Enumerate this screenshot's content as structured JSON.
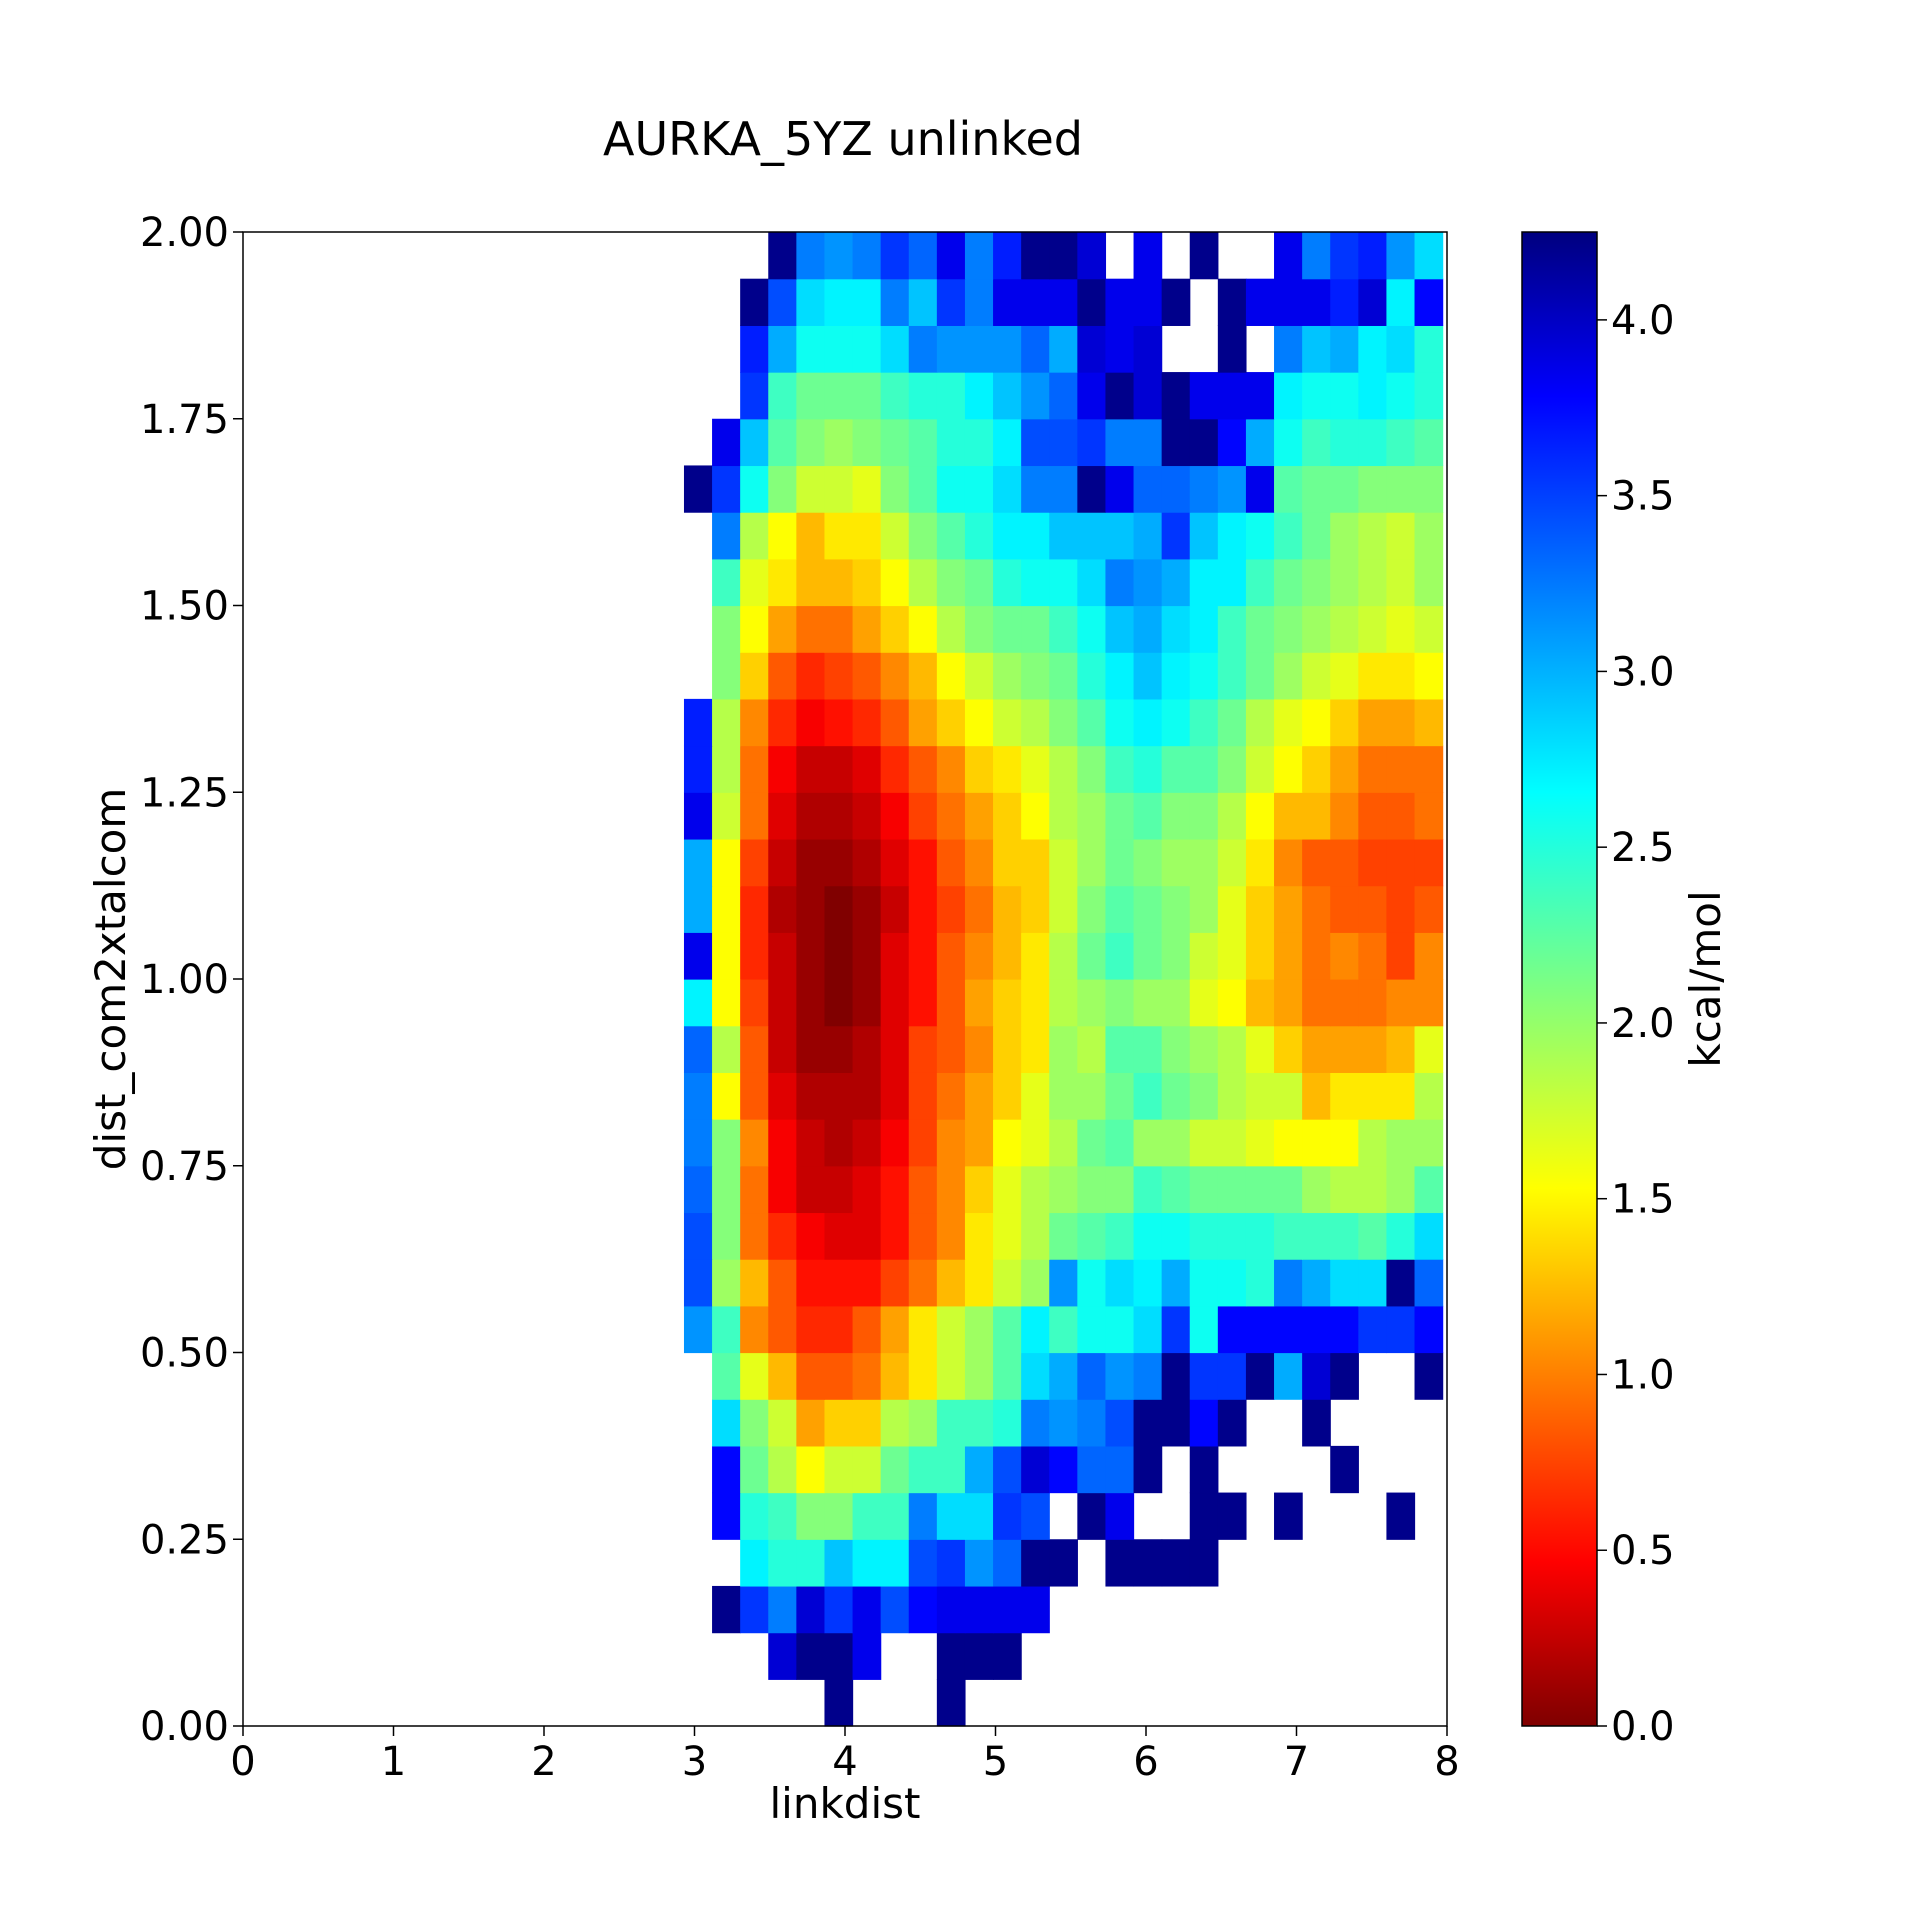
{
  "chart_data": {
    "type": "heatmap",
    "title": "AURKA_5YZ unlinked",
    "xlabel": "linkdist",
    "ylabel": "dist_com2xtalcom",
    "colorbar_label": "kcal/mol",
    "colormap": "jet",
    "xlim": [
      0,
      8
    ],
    "ylim": [
      0,
      2
    ],
    "clim": [
      0,
      4.25
    ],
    "x_ticks": [
      0,
      1,
      2,
      3,
      4,
      5,
      6,
      7,
      8
    ],
    "x_tick_labels": [
      "0",
      "1",
      "2",
      "3",
      "4",
      "5",
      "6",
      "7",
      "8"
    ],
    "y_ticks": [
      0,
      0.25,
      0.5,
      0.75,
      1.0,
      1.25,
      1.5,
      1.75,
      2.0
    ],
    "y_tick_labels": [
      "0.00",
      "0.25",
      "0.50",
      "0.75",
      "1.00",
      "1.25",
      "1.50",
      "1.75",
      "2.00"
    ],
    "colorbar_ticks": [
      0,
      0.5,
      1.0,
      1.5,
      2.0,
      2.5,
      3.0,
      3.5,
      4.0
    ],
    "colorbar_tick_labels": [
      "0.0",
      "0.5",
      "1.0",
      "1.5",
      "2.0",
      "2.5",
      "3.0",
      "3.5",
      "4.0"
    ],
    "x_bin_edges_start": 2.93,
    "x_bin_width": 0.1867,
    "y_bin_height": 0.0625,
    "y_bin_order": "bottom row first (row 0 = y 0.000–0.0625)",
    "grid": false,
    "values": [
      [
        null,
        null,
        null,
        null,
        null,
        4.2,
        null,
        null,
        null,
        4.2,
        null,
        null,
        null,
        null,
        null,
        null,
        null,
        null,
        null,
        null,
        null,
        null,
        null,
        null,
        null,
        null,
        null
      ],
      [
        null,
        null,
        null,
        3.9,
        4.2,
        4.2,
        3.8,
        null,
        null,
        4.2,
        4.2,
        4.2,
        null,
        null,
        null,
        null,
        null,
        null,
        null,
        null,
        null,
        null,
        null,
        null,
        null,
        null,
        null
      ],
      [
        null,
        4.2,
        3.5,
        3.2,
        3.9,
        3.5,
        3.8,
        3.4,
        3.7,
        3.8,
        3.8,
        3.8,
        3.8,
        null,
        null,
        null,
        null,
        null,
        null,
        null,
        null,
        null,
        null,
        null,
        null,
        null,
        null
      ],
      [
        null,
        null,
        2.7,
        2.5,
        2.5,
        2.9,
        2.7,
        2.7,
        3.4,
        3.5,
        3.1,
        3.3,
        4.2,
        4.2,
        null,
        4.2,
        4.2,
        4.2,
        4.2,
        null,
        null,
        null,
        null,
        null,
        null,
        null,
        null
      ],
      [
        null,
        3.7,
        2.5,
        2.4,
        2.1,
        2.1,
        2.4,
        2.4,
        3.2,
        2.8,
        2.8,
        3.5,
        3.4,
        null,
        4.2,
        3.8,
        null,
        null,
        4.2,
        4.2,
        null,
        4.2,
        null,
        null,
        null,
        4.2,
        null
      ],
      [
        null,
        3.7,
        2.2,
        1.9,
        1.6,
        1.8,
        1.8,
        2.2,
        2.4,
        2.4,
        3.0,
        3.4,
        3.9,
        3.7,
        3.3,
        3.3,
        4.2,
        null,
        4.2,
        null,
        null,
        null,
        null,
        4.2,
        null,
        null,
        null
      ],
      [
        null,
        2.8,
        2.1,
        1.8,
        1.2,
        1.4,
        1.4,
        1.9,
        2.0,
        2.4,
        2.4,
        2.5,
        3.2,
        3.1,
        3.2,
        3.4,
        4.2,
        4.2,
        3.7,
        4.2,
        null,
        null,
        4.2,
        null,
        null,
        null,
        null
      ],
      [
        null,
        2.3,
        1.7,
        1.3,
        0.9,
        0.9,
        1.0,
        1.3,
        1.5,
        1.8,
        2.0,
        2.3,
        2.8,
        3.0,
        3.3,
        3.1,
        3.2,
        4.2,
        3.5,
        3.5,
        4.2,
        3.0,
        3.9,
        4.2,
        null,
        null,
        4.2
      ],
      [
        3.1,
        2.4,
        1.1,
        0.9,
        0.7,
        0.7,
        0.9,
        1.2,
        1.5,
        1.8,
        2.0,
        2.3,
        2.7,
        2.4,
        2.6,
        2.6,
        2.8,
        3.5,
        2.6,
        3.7,
        3.7,
        3.7,
        3.7,
        3.7,
        3.5,
        3.5,
        3.7
      ],
      [
        3.4,
        2.0,
        1.3,
        0.9,
        0.6,
        0.6,
        0.6,
        0.8,
        1.0,
        1.3,
        1.5,
        1.8,
        2.0,
        3.1,
        2.6,
        2.8,
        2.7,
        3.0,
        2.6,
        2.6,
        2.5,
        3.2,
        3.0,
        2.8,
        2.8,
        4.2,
        3.3
      ],
      [
        3.4,
        2.1,
        1.0,
        0.7,
        0.5,
        0.4,
        0.4,
        0.6,
        0.9,
        1.1,
        1.5,
        1.7,
        1.9,
        2.2,
        2.3,
        2.4,
        2.6,
        2.6,
        2.5,
        2.5,
        2.5,
        2.4,
        2.4,
        2.4,
        2.3,
        2.5,
        2.8
      ],
      [
        3.3,
        2.1,
        1.0,
        0.5,
        0.3,
        0.3,
        0.4,
        0.6,
        0.9,
        1.1,
        1.4,
        1.7,
        1.9,
        2.0,
        2.1,
        2.1,
        2.4,
        2.3,
        2.2,
        2.2,
        2.2,
        2.2,
        2.0,
        1.9,
        1.9,
        2.0,
        2.3
      ],
      [
        3.2,
        2.1,
        1.1,
        0.5,
        0.3,
        0.2,
        0.3,
        0.5,
        0.8,
        1.1,
        1.2,
        1.6,
        1.7,
        1.9,
        2.2,
        2.3,
        2.0,
        2.0,
        1.8,
        1.8,
        1.7,
        1.6,
        1.6,
        1.6,
        1.9,
        2.0,
        2.0
      ],
      [
        3.2,
        1.6,
        0.9,
        0.4,
        0.2,
        0.2,
        0.2,
        0.4,
        0.8,
        1.0,
        1.2,
        1.4,
        1.7,
        2.0,
        2.0,
        2.2,
        2.4,
        2.2,
        2.1,
        1.9,
        1.8,
        1.8,
        1.3,
        1.5,
        1.5,
        1.5,
        1.9
      ],
      [
        3.3,
        1.9,
        0.9,
        0.3,
        0.1,
        0.1,
        0.2,
        0.4,
        0.8,
        0.9,
        1.1,
        1.4,
        1.5,
        2.0,
        1.9,
        2.3,
        2.3,
        2.1,
        2.0,
        1.9,
        1.7,
        1.4,
        1.2,
        1.2,
        1.2,
        1.3,
        1.7
      ],
      [
        2.7,
        1.6,
        0.8,
        0.3,
        0.1,
        0.0,
        0.1,
        0.4,
        0.6,
        0.9,
        1.2,
        1.4,
        1.5,
        1.9,
        2.0,
        2.1,
        2.0,
        2.0,
        1.7,
        1.6,
        1.3,
        1.2,
        1.0,
        1.0,
        1.0,
        1.1,
        1.1
      ],
      [
        3.8,
        1.6,
        0.7,
        0.3,
        0.1,
        0.0,
        0.1,
        0.4,
        0.6,
        0.9,
        1.1,
        1.3,
        1.5,
        1.9,
        2.2,
        2.4,
        2.2,
        2.1,
        1.8,
        1.7,
        1.4,
        1.2,
        1.0,
        1.1,
        1.0,
        0.8,
        1.1
      ],
      [
        3.0,
        1.6,
        0.7,
        0.2,
        0.1,
        0.0,
        0.1,
        0.3,
        0.6,
        0.8,
        1.0,
        1.3,
        1.4,
        1.8,
        2.1,
        2.3,
        2.2,
        2.1,
        2.0,
        1.7,
        1.4,
        1.2,
        1.0,
        0.9,
        0.9,
        0.8,
        0.9
      ],
      [
        3.0,
        1.6,
        0.8,
        0.3,
        0.1,
        0.1,
        0.2,
        0.4,
        0.6,
        0.9,
        1.1,
        1.4,
        1.4,
        1.8,
        2.0,
        2.2,
        2.1,
        2.0,
        2.0,
        1.8,
        1.5,
        1.1,
        0.9,
        0.9,
        0.8,
        0.8,
        0.8
      ],
      [
        3.8,
        1.8,
        1.0,
        0.4,
        0.2,
        0.2,
        0.3,
        0.5,
        0.8,
        1.0,
        1.2,
        1.4,
        1.6,
        1.9,
        2.0,
        2.2,
        2.3,
        2.1,
        2.1,
        1.9,
        1.6,
        1.3,
        1.3,
        1.1,
        0.9,
        0.9,
        1.0
      ],
      [
        3.6,
        1.9,
        1.0,
        0.5,
        0.3,
        0.3,
        0.4,
        0.7,
        0.9,
        1.1,
        1.4,
        1.5,
        1.7,
        1.9,
        2.1,
        2.4,
        2.5,
        2.3,
        2.3,
        2.1,
        1.8,
        1.6,
        1.4,
        1.2,
        1.0,
        1.0,
        1.0
      ],
      [
        3.6,
        1.9,
        1.1,
        0.7,
        0.5,
        0.6,
        0.7,
        0.9,
        1.2,
        1.4,
        1.6,
        1.8,
        1.9,
        2.1,
        2.3,
        2.6,
        2.7,
        2.6,
        2.4,
        2.2,
        1.9,
        1.7,
        1.6,
        1.4,
        1.2,
        1.2,
        1.3
      ],
      [
        null,
        2.1,
        1.4,
        0.9,
        0.7,
        0.8,
        0.9,
        1.1,
        1.3,
        1.6,
        1.8,
        2.0,
        2.1,
        2.2,
        2.5,
        2.7,
        2.9,
        2.7,
        2.6,
        2.4,
        2.2,
        2.0,
        1.8,
        1.7,
        1.5,
        1.5,
        1.6
      ],
      [
        null,
        2.1,
        1.6,
        1.2,
        1.0,
        1.0,
        1.2,
        1.4,
        1.6,
        1.9,
        2.1,
        2.2,
        2.2,
        2.4,
        2.6,
        2.9,
        3.0,
        2.8,
        2.7,
        2.4,
        2.2,
        2.1,
        2.0,
        1.9,
        1.8,
        1.7,
        1.8
      ],
      [
        null,
        2.4,
        1.7,
        1.5,
        1.3,
        1.3,
        1.4,
        1.6,
        1.9,
        2.1,
        2.2,
        2.5,
        2.6,
        2.6,
        2.8,
        3.2,
        3.1,
        3.0,
        2.7,
        2.7,
        2.4,
        2.2,
        2.1,
        2.0,
        1.9,
        1.8,
        2.0
      ],
      [
        null,
        3.2,
        1.9,
        1.6,
        1.3,
        1.5,
        1.5,
        1.8,
        2.1,
        2.3,
        2.5,
        2.7,
        2.7,
        2.9,
        2.9,
        2.9,
        3.0,
        3.5,
        2.9,
        2.7,
        2.6,
        2.4,
        2.2,
        2.0,
        1.9,
        1.8,
        2.0
      ],
      [
        4.2,
        3.5,
        2.6,
        2.1,
        1.8,
        1.8,
        1.7,
        2.1,
        2.3,
        2.6,
        2.6,
        2.8,
        3.2,
        3.2,
        4.2,
        3.8,
        3.3,
        3.3,
        3.2,
        3.1,
        3.8,
        2.3,
        2.2,
        2.2,
        2.1,
        2.1,
        2.1
      ],
      [
        null,
        3.8,
        2.9,
        2.3,
        2.1,
        2.0,
        2.1,
        2.2,
        2.3,
        2.5,
        2.5,
        2.7,
        3.4,
        3.4,
        3.5,
        3.2,
        3.2,
        4.2,
        4.2,
        3.7,
        3.0,
        2.6,
        2.4,
        2.5,
        2.5,
        2.4,
        2.3
      ],
      [
        null,
        null,
        3.5,
        2.4,
        2.2,
        2.2,
        2.2,
        2.4,
        2.5,
        2.5,
        2.7,
        2.9,
        3.1,
        3.3,
        3.8,
        4.2,
        3.9,
        4.2,
        3.8,
        3.8,
        3.8,
        2.7,
        2.6,
        2.6,
        2.7,
        2.6,
        2.5
      ],
      [
        null,
        null,
        3.6,
        3.0,
        2.6,
        2.6,
        2.6,
        2.8,
        3.2,
        3.1,
        3.1,
        3.1,
        3.3,
        3.0,
        3.9,
        3.8,
        3.9,
        null,
        null,
        4.2,
        null,
        3.2,
        2.9,
        3.0,
        2.7,
        2.8,
        2.5
      ],
      [
        null,
        null,
        4.2,
        3.4,
        2.8,
        2.7,
        2.7,
        3.2,
        2.9,
        3.5,
        3.2,
        3.8,
        3.8,
        3.8,
        4.2,
        3.8,
        3.8,
        4.2,
        null,
        4.2,
        3.8,
        3.8,
        3.8,
        3.6,
        3.9,
        2.7,
        3.7
      ],
      [
        null,
        null,
        null,
        4.2,
        3.2,
        3.1,
        3.2,
        3.5,
        3.3,
        3.8,
        3.2,
        3.6,
        4.2,
        4.2,
        3.9,
        null,
        3.8,
        null,
        4.2,
        null,
        null,
        3.8,
        3.2,
        3.5,
        3.6,
        3.1,
        2.8
      ]
    ]
  }
}
